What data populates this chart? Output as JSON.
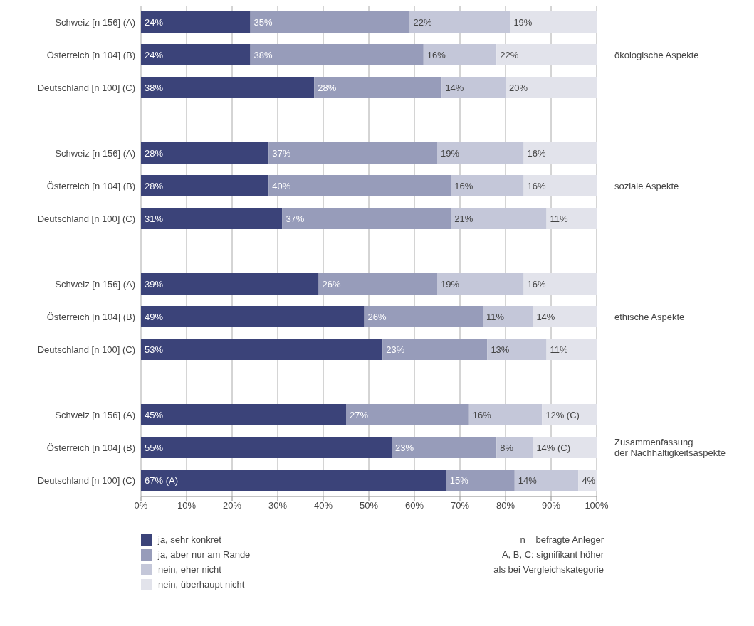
{
  "chart_data": {
    "type": "bar",
    "orientation": "horizontal",
    "stacked": true,
    "categories": [
      "Schweiz [n 156] (A)",
      "Österreich [n 104] (B)",
      "Deutschland [n 100] (C)",
      null,
      "Schweiz [n 156] (A)",
      "Österreich [n 104] (B)",
      "Deutschland [n 100] (C)",
      null,
      "Schweiz [n 156] (A)",
      "Österreich [n 104] (B)",
      "Deutschland [n 100] (C)",
      null,
      "Schweiz [n 156] (A)",
      "Österreich [n 104] (B)",
      "Deutschland [n 100] (C)"
    ],
    "series": [
      {
        "name": "ja, sehr konkret",
        "color": "#3b4379",
        "values": [
          24,
          24,
          38,
          null,
          28,
          28,
          31,
          null,
          39,
          49,
          53,
          null,
          45,
          55,
          67
        ],
        "value_labels": [
          "24%",
          "24%",
          "38%",
          null,
          "28%",
          "28%",
          "31%",
          null,
          "39%",
          "49%",
          "53%",
          null,
          "45%",
          "55%",
          "67% (A)"
        ]
      },
      {
        "name": "ja, aber nur am Rande",
        "color": "#979cba",
        "values": [
          35,
          38,
          28,
          null,
          37,
          40,
          37,
          null,
          26,
          26,
          23,
          null,
          27,
          23,
          15
        ],
        "value_labels": [
          "35%",
          "38%",
          "28%",
          null,
          "37%",
          "40%",
          "37%",
          null,
          "26%",
          "26%",
          "23%",
          null,
          "27%",
          "23%",
          "15%"
        ]
      },
      {
        "name": "nein, eher nicht",
        "color": "#c4c7d9",
        "values": [
          22,
          16,
          14,
          null,
          19,
          16,
          21,
          null,
          19,
          11,
          13,
          null,
          16,
          8,
          14
        ],
        "value_labels": [
          "22%",
          "16%",
          "14%",
          null,
          "19%",
          "16%",
          "21%",
          null,
          "19%",
          "11%",
          "13%",
          null,
          "16%",
          "8%",
          "14%"
        ]
      },
      {
        "name": "nein, überhaupt nicht",
        "color": "#e2e3eb",
        "values": [
          19,
          22,
          20,
          null,
          16,
          16,
          11,
          null,
          16,
          14,
          11,
          null,
          12,
          14,
          4
        ],
        "value_labels": [
          "19%",
          "22%",
          "20%",
          null,
          "16%",
          "16%",
          "11%",
          null,
          "16%",
          "14%",
          "11%",
          null,
          "12% (C)",
          "14% (C)",
          "4%"
        ]
      }
    ],
    "xlim": [
      0,
      100
    ],
    "xticks": [
      {
        "value": 0,
        "label": "0%"
      },
      {
        "value": 10,
        "label": "10%"
      },
      {
        "value": 20,
        "label": "20%"
      },
      {
        "value": 30,
        "label": "30%"
      },
      {
        "value": 40,
        "label": "40%"
      },
      {
        "value": 50,
        "label": "50%"
      },
      {
        "value": 60,
        "label": "60%"
      },
      {
        "value": 70,
        "label": "70%"
      },
      {
        "value": 80,
        "label": "80%"
      },
      {
        "value": 90,
        "label": "90%"
      },
      {
        "value": 100,
        "label": "100%"
      }
    ],
    "grid": "x",
    "legend": "bottom left",
    "annotations": [
      "ökologische Aspekte",
      "soziale Aspekte",
      "ethische Aspekte",
      "Zusammenfassung\nder Nachhaltigkeitsaspekte",
      "n = befragte Anleger",
      "A, B, C: signifikant höher\nals bei Vergleichskategorie"
    ]
  }
}
